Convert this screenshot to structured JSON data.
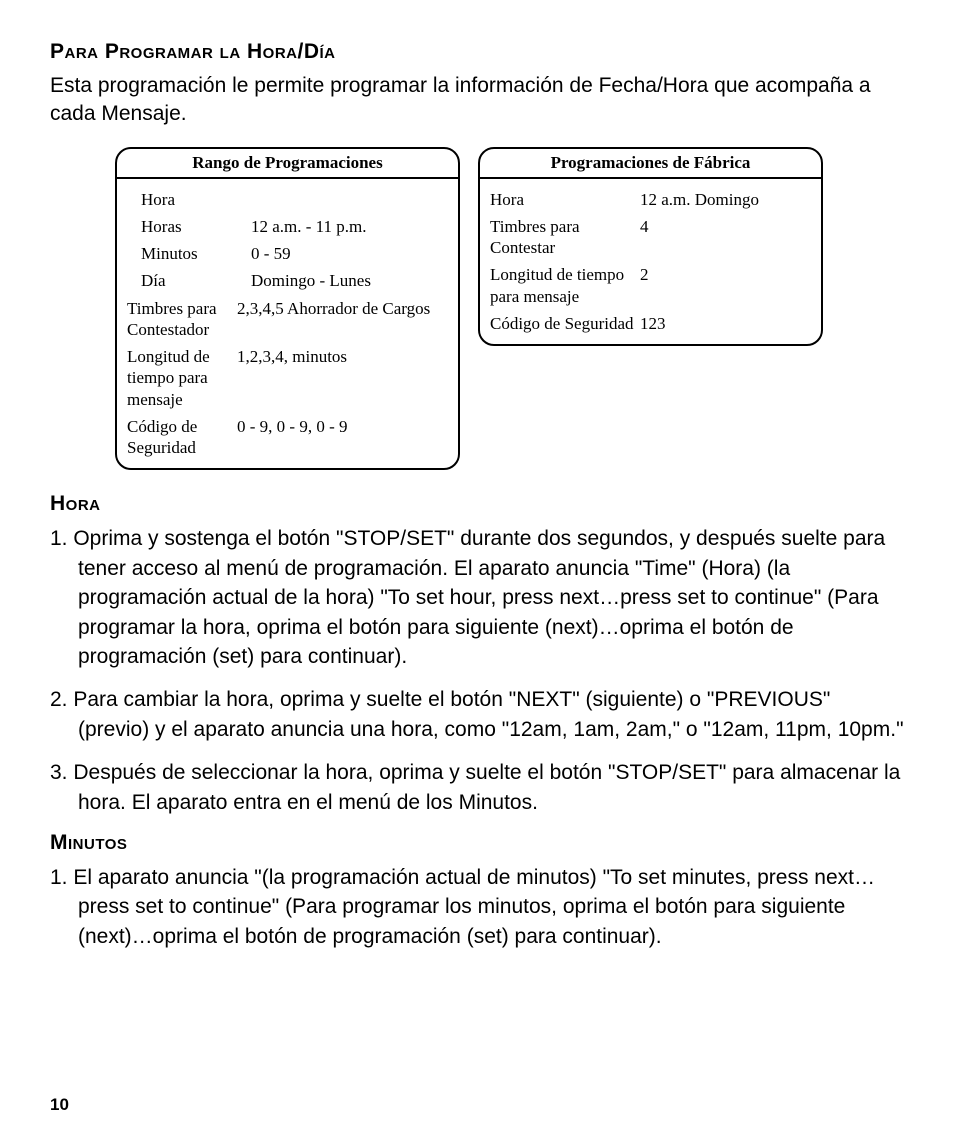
{
  "headings": {
    "main": "Para Programar la Hora/Día",
    "hora": "Hora",
    "minutos": "Minutos"
  },
  "intro": "Esta programación le permite programar la información de Fecha/Hora que acompaña a cada Mensaje.",
  "box_left": {
    "title": "Rango de Programaciones",
    "rows": {
      "r0_label": "Hora",
      "r1_label": "Horas",
      "r1_value": "12 a.m. - 11 p.m.",
      "r2_label": "Minutos",
      "r2_value": "0 - 59",
      "r3_label": "Día",
      "r3_value": "Domingo - Lunes",
      "r4_label": "Timbres para Contestador",
      "r4_value": "2,3,4,5 Ahorrador de Cargos",
      "r5_label": "Longitud de tiempo para mensaje",
      "r5_value": "1,2,3,4, minutos",
      "r6_label": "Código de Seguridad",
      "r6_value": "0 - 9, 0 - 9, 0 - 9"
    }
  },
  "box_right": {
    "title": "Programaciones de Fábrica",
    "rows": {
      "r0_label": "Hora",
      "r0_value": "12 a.m. Domingo",
      "r1_label": "Timbres para Contestar",
      "r1_value": "4",
      "r2_label": "Longitud de tiempo para mensaje",
      "r2_value": "2",
      "r3_label": "Código de Seguridad",
      "r3_value": "123"
    }
  },
  "hora_steps": {
    "s1": "1.  Oprima y sostenga el botón \"STOP/SET\" durante dos segundos, y después suelte para tener acceso al menú de programación. El aparato anuncia \"Time\" (Hora) (la programación actual de la hora) \"To set hour, press next…press set to continue\" (Para programar la hora, oprima el botón para siguiente (next)…oprima el botón de programación (set) para continuar).",
    "s2": "2. Para cambiar la hora, oprima y suelte el botón \"NEXT\" (siguiente) o \"PREVIOUS\" (previo) y el aparato anuncia una hora, como \"12am, 1am, 2am,\" o \"12am, 11pm, 10pm.\"",
    "s3": "3. Después de seleccionar la hora, oprima y suelte el botón \"STOP/SET\" para almacenar la hora. El aparato entra en el menú de los Minutos."
  },
  "minutos_steps": {
    "s1": "1. El aparato anuncia \"(la programación actual de minutos) \"To set minutes, press next…press set to continue\" (Para programar los minutos, oprima el botón para siguiente (next)…oprima el botón de programación (set) para continuar)."
  },
  "page_number": "10"
}
